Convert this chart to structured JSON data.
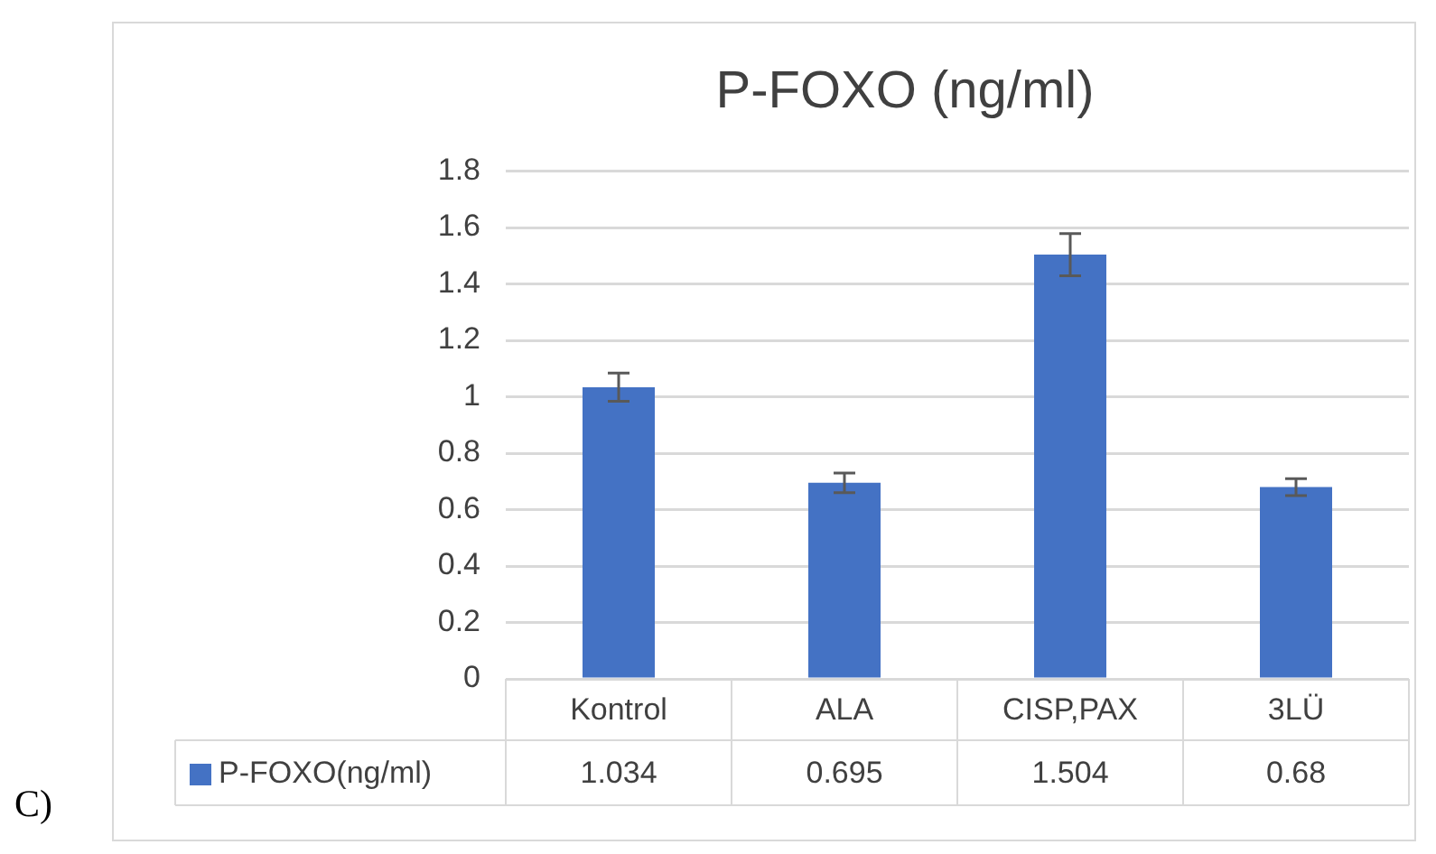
{
  "chart_data": {
    "type": "bar",
    "title": "P-FOXO (ng/ml)",
    "categories": [
      "Kontrol",
      "ALA",
      "CISP,PAX",
      "3LÜ"
    ],
    "series": [
      {
        "name": "P-FOXO(ng/ml)",
        "color": "#4472c4",
        "values": [
          1.034,
          0.695,
          1.504,
          0.68
        ],
        "errors": [
          0.05,
          0.035,
          0.075,
          0.03
        ]
      }
    ],
    "ylim": [
      0,
      1.8
    ],
    "yticks": [
      0,
      0.2,
      0.4,
      0.6,
      0.8,
      1,
      1.2,
      1.4,
      1.6,
      1.8
    ],
    "grid": "y",
    "legend": "bottom",
    "data_labels": true,
    "annotations": [
      "C)"
    ]
  }
}
